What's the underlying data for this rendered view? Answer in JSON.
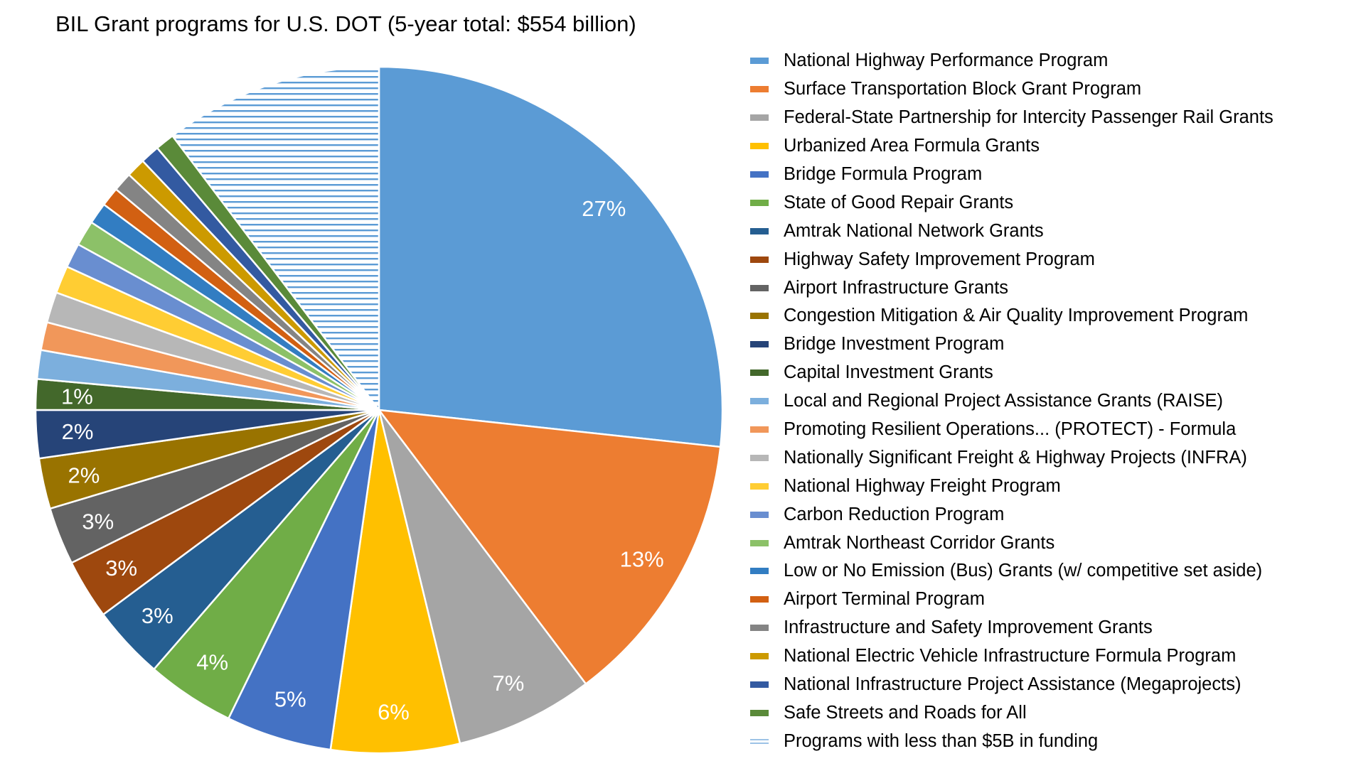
{
  "chart_data": {
    "type": "pie",
    "title": "BIL Grant programs for U.S. DOT (5-year total: $554 billion)",
    "unit": "billion USD",
    "legend_position": "right",
    "slices": [
      {
        "name": "National Highway Performance Program",
        "value": 148,
        "label": "27%",
        "color": "#5B9BD5"
      },
      {
        "name": "Surface Transportation Block Grant Program",
        "value": 72,
        "label": "13%",
        "color": "#ED7D31"
      },
      {
        "name": "Federal-State Partnership for Intercity Passenger Rail Grants",
        "value": 36,
        "label": "7%",
        "color": "#A5A5A5"
      },
      {
        "name": "Urbanized Area Formula Grants",
        "value": 33.5,
        "label": "6%",
        "color": "#FFC000"
      },
      {
        "name": "Bridge Formula Program",
        "value": 27.5,
        "label": "5%",
        "color": "#4472C4"
      },
      {
        "name": "State of Good Repair Grants",
        "value": 23,
        "label": "4%",
        "color": "#70AD47"
      },
      {
        "name": "Amtrak National Network Grants",
        "value": 19.2,
        "label": "3%",
        "color": "#255E91"
      },
      {
        "name": "Highway Safety Improvement Program",
        "value": 15.6,
        "label": "3%",
        "color": "#9E480E"
      },
      {
        "name": "Airport Infrastructure Grants",
        "value": 15,
        "label": "3%",
        "color": "#636363"
      },
      {
        "name": "Congestion Mitigation & Air Quality Improvement Program",
        "value": 13.2,
        "label": "2%",
        "color": "#997300"
      },
      {
        "name": "Bridge Investment Program",
        "value": 12.5,
        "label": "2%",
        "color": "#264478"
      },
      {
        "name": "Capital Investment Grants",
        "value": 8,
        "label": "1%",
        "color": "#43682B"
      },
      {
        "name": "Local and Regional Project Assistance Grants (RAISE)",
        "value": 7.5,
        "label": "",
        "color": "#7CAFDD"
      },
      {
        "name": "Promoting Resilient Operations... (PROTECT) - Formula",
        "value": 7.3,
        "label": "",
        "color": "#F1975A"
      },
      {
        "name": "Nationally Significant Freight & Highway Projects (INFRA)",
        "value": 8,
        "label": "",
        "color": "#B7B7B7"
      },
      {
        "name": "National Highway Freight Program",
        "value": 7.2,
        "label": "",
        "color": "#FFCD33"
      },
      {
        "name": "Carbon Reduction Program",
        "value": 6.4,
        "label": "",
        "color": "#698ED0"
      },
      {
        "name": "Amtrak Northeast Corridor Grants",
        "value": 6.6,
        "label": "",
        "color": "#8CC168"
      },
      {
        "name": "Low or No Emission (Bus) Grants (w/ competitive set aside)",
        "value": 5.6,
        "label": "",
        "color": "#327DC2"
      },
      {
        "name": "Airport Terminal Program",
        "value": 5,
        "label": "",
        "color": "#D26012"
      },
      {
        "name": "Infrastructure and Safety Improvement Grants",
        "value": 5,
        "label": "",
        "color": "#848484"
      },
      {
        "name": "National Electric Vehicle Infrastructure Formula Program",
        "value": 5,
        "label": "",
        "color": "#CC9A00"
      },
      {
        "name": "National Infrastructure Project Assistance (Megaprojects)",
        "value": 5,
        "label": "",
        "color": "#335AA1"
      },
      {
        "name": "Safe Streets and Roads for All",
        "value": 5,
        "label": "",
        "color": "#5A8A39"
      },
      {
        "name": "Programs with less than $5B in funding",
        "value": 56.9,
        "label": "",
        "color": "#5B9BD5",
        "pattern": "horizontal-lines"
      }
    ]
  }
}
